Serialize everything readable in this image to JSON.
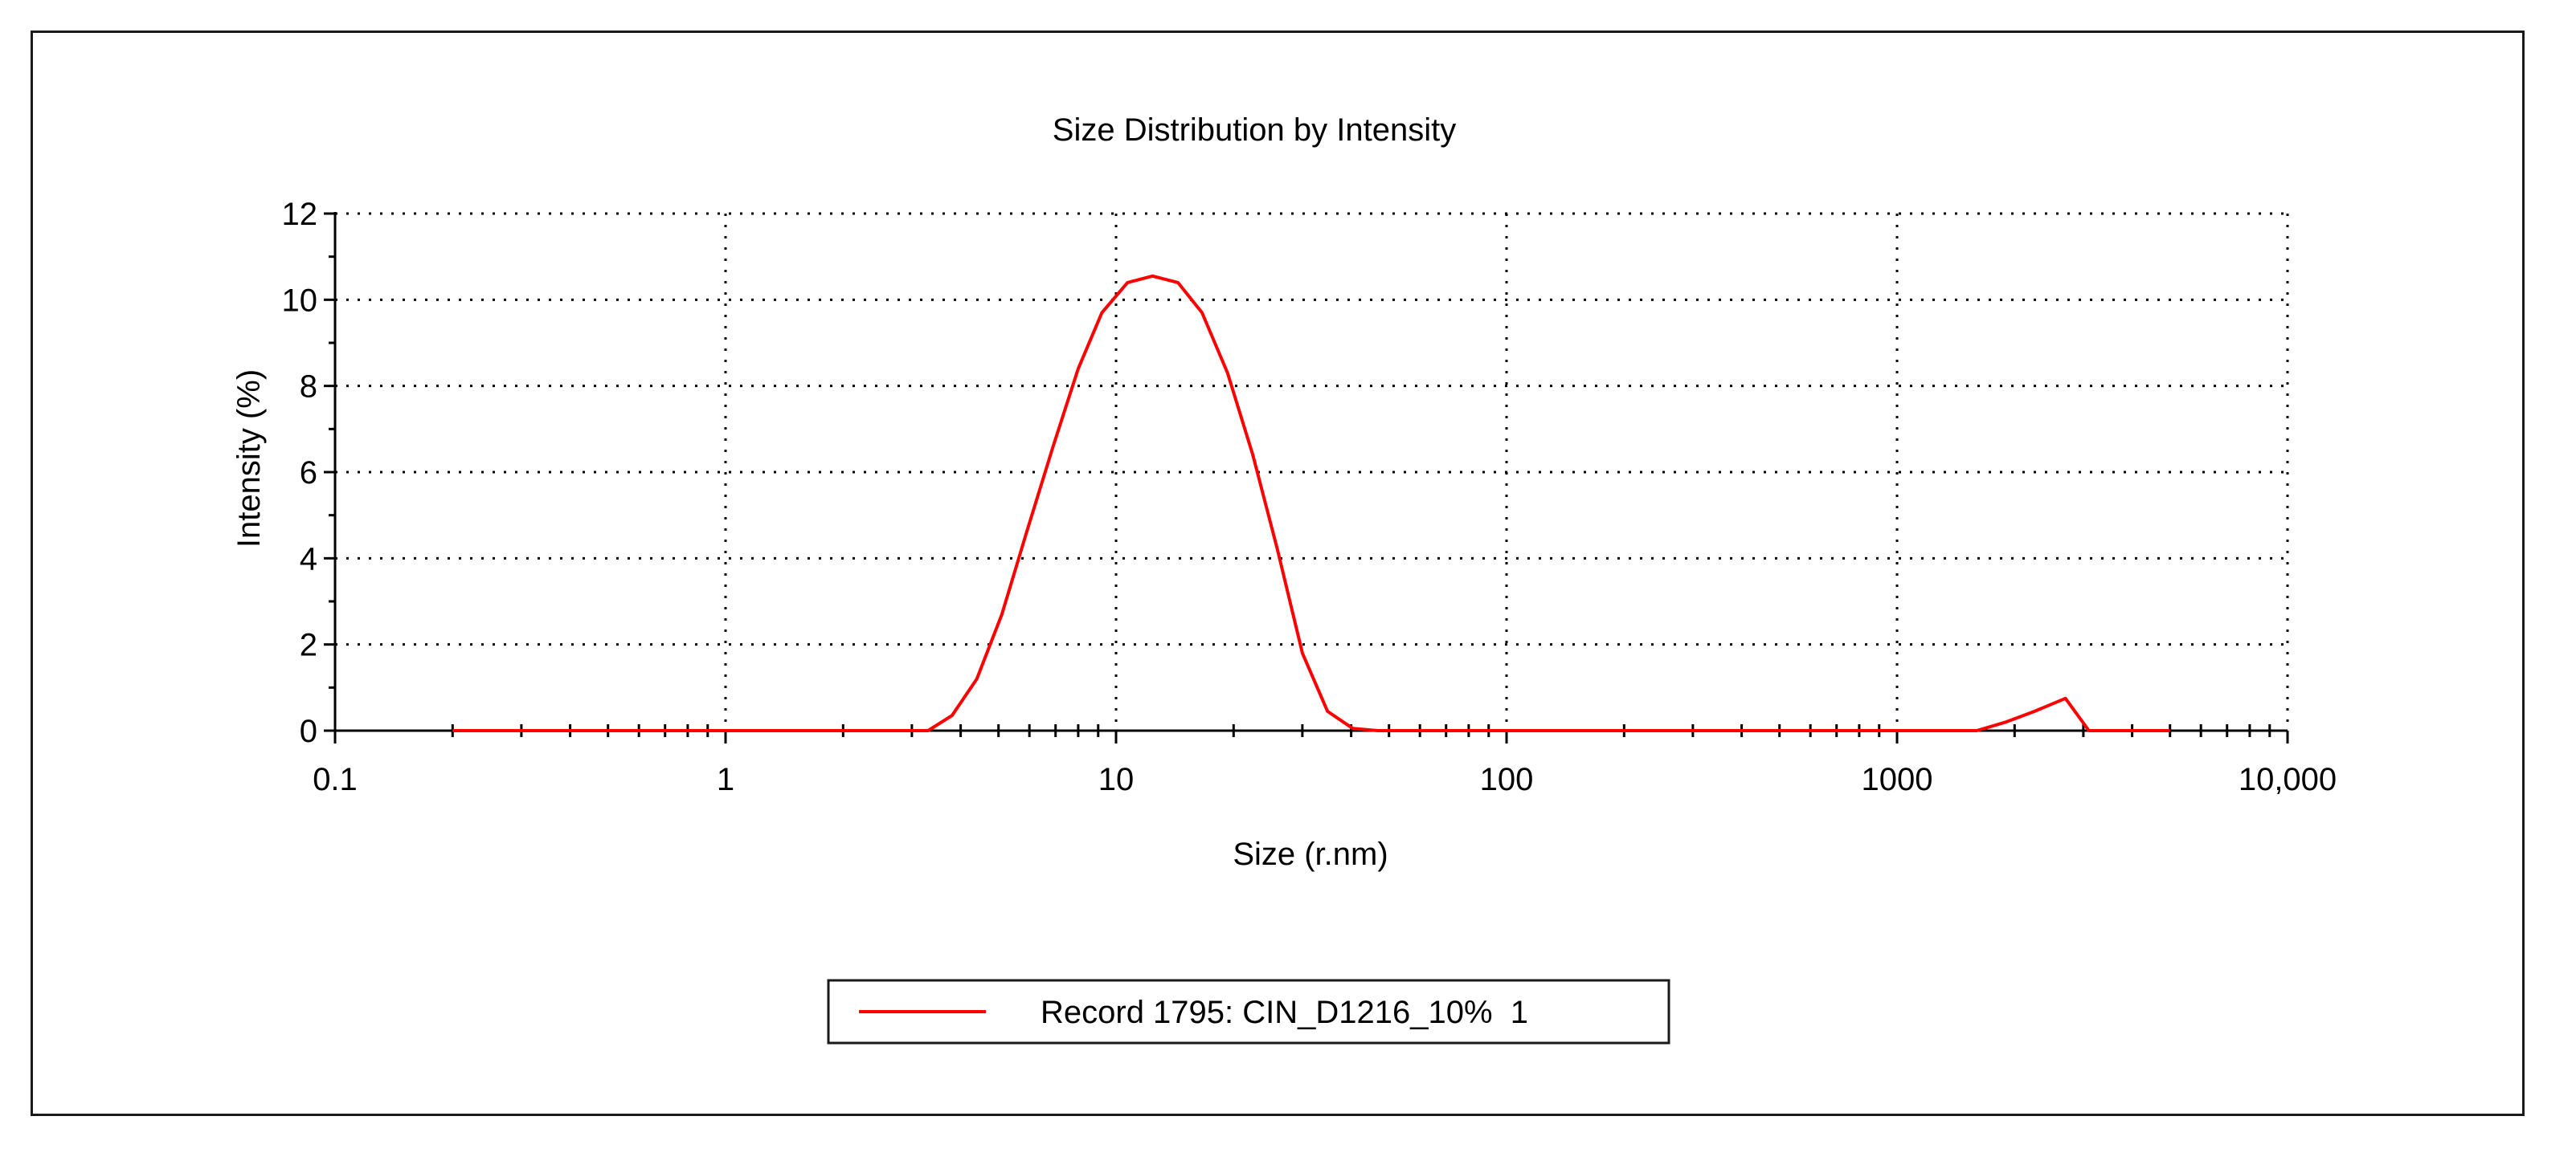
{
  "chart_data": {
    "type": "line",
    "title": "Size Distribution by Intensity",
    "xlabel": "Size (r.nm)",
    "ylabel": "Intensity (%)",
    "xscale": "log",
    "xlim": [
      0.1,
      10000
    ],
    "ylim": [
      0,
      12
    ],
    "xticks": [
      0.1,
      1,
      10,
      100,
      1000,
      10000
    ],
    "xtick_labels": [
      "0.1",
      "1",
      "10",
      "100",
      "1000",
      "10,000"
    ],
    "yticks": [
      0,
      2,
      4,
      6,
      8,
      10,
      12
    ],
    "ytick_labels": [
      "0",
      "2",
      "4",
      "6",
      "8",
      "10",
      "12"
    ],
    "grid": true,
    "legend_position": "bottom-center",
    "series": [
      {
        "name": "Record 1795: CIN_D1216_10%  1",
        "color": "#ff0000",
        "x": [
          0.2,
          0.3,
          0.5,
          1,
          2,
          3.3,
          3.8,
          4.4,
          5.1,
          5.9,
          6.9,
          8.0,
          9.2,
          10.7,
          12.4,
          14.4,
          16.6,
          19.3,
          22.4,
          25.9,
          30.0,
          34.8,
          40.4,
          46.8,
          54,
          100,
          500,
          1600,
          1900,
          2250,
          2700,
          3100,
          5000
        ],
        "values": [
          0,
          0,
          0,
          0,
          0,
          0,
          0.35,
          1.2,
          2.7,
          4.6,
          6.6,
          8.4,
          9.7,
          10.4,
          10.55,
          10.4,
          9.7,
          8.3,
          6.4,
          4.2,
          1.8,
          0.45,
          0.05,
          0,
          0,
          0,
          0,
          0,
          0.2,
          0.45,
          0.75,
          0,
          0
        ]
      }
    ]
  }
}
